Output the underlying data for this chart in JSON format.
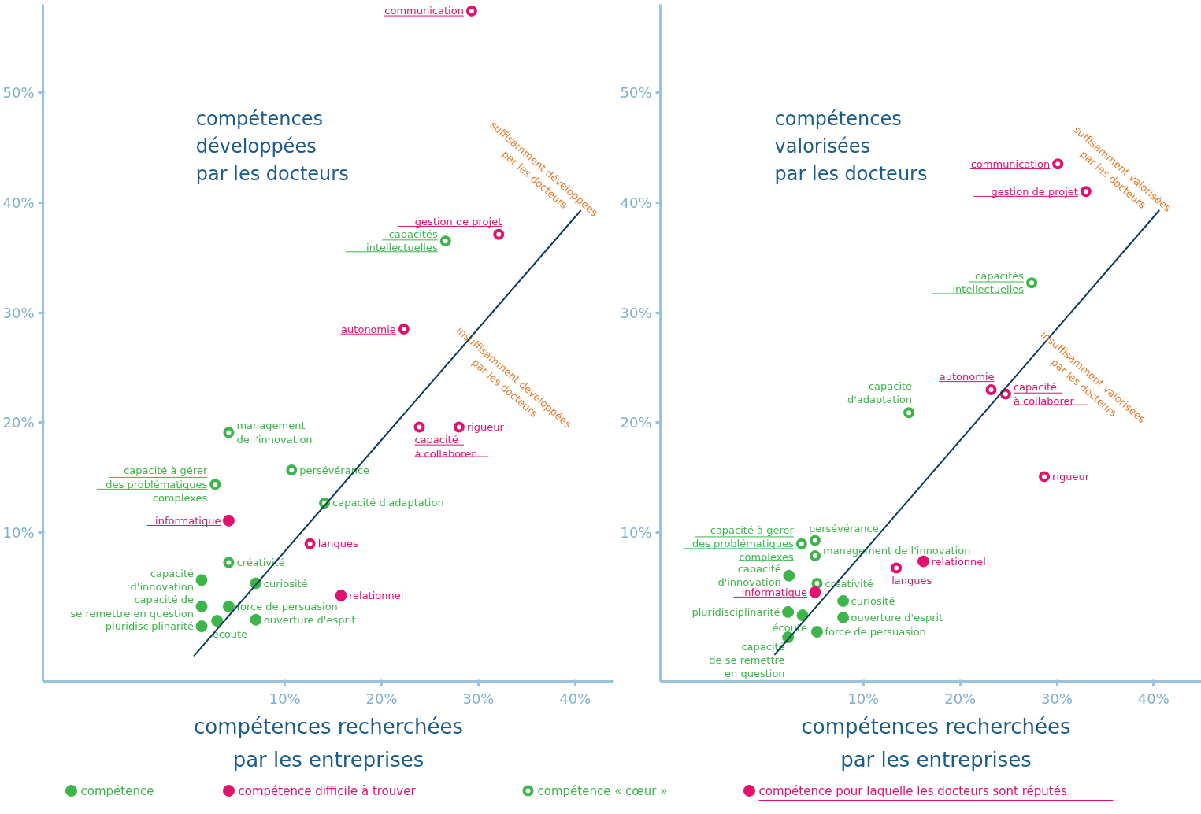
{
  "chart_data": [
    {
      "type": "scatter",
      "marker": "circle",
      "legend": "bottom",
      "ylabel": "compétences\ndéveloppées\npar les docteurs",
      "xlabel": "compétences recherchées\npar les entreprises",
      "xlim": [
        -15,
        44
      ],
      "ylim": [
        -3.5,
        58
      ],
      "xticks": [
        {
          "value": 10,
          "label": "10%"
        },
        {
          "value": 20,
          "label": "20%"
        },
        {
          "value": 30,
          "label": "30%"
        },
        {
          "value": 40,
          "label": "40%"
        }
      ],
      "yticks": [
        {
          "value": 10,
          "label": "10%"
        },
        {
          "value": 20,
          "label": "20%"
        },
        {
          "value": 30,
          "label": "30%"
        },
        {
          "value": 40,
          "label": "40%"
        },
        {
          "value": 50,
          "label": "50%"
        }
      ],
      "series": [
        {
          "name": "compétence",
          "color": "#3db54a",
          "x": [
            1.4,
            1.4,
            1.4,
            3.0,
            7.0,
            4.2,
            7.0
          ],
          "values": [
            5.7,
            3.3,
            1.5,
            2.0,
            5.4,
            3.3,
            2.1
          ],
          "value_labels": [
            "capacité\nd'innovation",
            "capacité de\nse remettre en question",
            "pluridisciplinarité",
            "écoute",
            "curiosité",
            "force de persuasion",
            "ouverture d'esprit"
          ]
        },
        {
          "name": "compétence difficile à trouver",
          "color": "#e3106e",
          "x": [
            15.8
          ],
          "values": [
            4.3
          ],
          "value_labels": [
            "relationnel"
          ]
        },
        {
          "name": "compétence « cœur »",
          "color": "#3db54a",
          "x": [
            4.2,
            10.7,
            14.1,
            4.2
          ],
          "values": [
            19.1,
            15.7,
            12.7,
            7.3
          ],
          "value_labels": [
            "management\nde l'innovation",
            "persévérance",
            "capacité d'adaptation",
            "créativité"
          ]
        },
        {
          "name": "compétence pour laquelle les docteurs sont réputés",
          "color": "#e3106e",
          "x": [
            4.2
          ],
          "values": [
            11.1
          ],
          "value_labels": [
            "informatique"
          ]
        },
        {
          "color": "#3db54a",
          "x": [
            26.6,
            2.8
          ],
          "values": [
            36.5,
            14.4
          ],
          "value_labels": [
            "capacités\nintellectuelles",
            "capacité à gérer\ndes problématiques\ncomplexes"
          ]
        },
        {
          "color": "#e3106e",
          "x": [
            28.0,
            12.6
          ],
          "values": [
            19.6,
            9.0
          ],
          "value_labels": [
            "rigueur",
            "langues"
          ]
        },
        {
          "color": "#e3106e",
          "x": [
            29.3,
            32.1,
            22.3,
            23.9
          ],
          "values": [
            57.4,
            37.1,
            28.5,
            19.6
          ],
          "value_labels": [
            "communication",
            "gestion de projet",
            "autonomie",
            "capacité\nà collaborer"
          ]
        },
        {
          "type": "line",
          "marker": "none",
          "color": "#0d3b5a",
          "x": [
            0.6,
            40.6
          ],
          "values": [
            -1.2,
            39.3
          ]
        }
      ],
      "annotations": [
        "suffisamment développées\npar les docteurs",
        "insuffisamment développées\npar les docteurs"
      ]
    },
    {
      "type": "scatter",
      "marker": "circle",
      "ylabel": "compétences\nvalorisées\npar les docteurs",
      "xlabel": "compétences recherchées\npar les entreprises",
      "xlim": [
        -11,
        46
      ],
      "ylim": [
        -3.5,
        58
      ],
      "xticks": [
        {
          "value": 10,
          "label": "10%"
        },
        {
          "value": 20,
          "label": "20%"
        },
        {
          "value": 30,
          "label": "30%"
        },
        {
          "value": 40,
          "label": "40%"
        }
      ],
      "yticks": [
        {
          "value": 10,
          "label": "10%"
        },
        {
          "value": 20,
          "label": "20%"
        },
        {
          "value": 30,
          "label": "30%"
        },
        {
          "value": 40,
          "label": "40%"
        },
        {
          "value": 50,
          "label": "50%"
        }
      ],
      "series": [
        {
          "color": "#3db54a",
          "x": [
            2.3,
            2.2,
            3.7,
            7.9,
            7.9,
            5.2,
            2.2
          ],
          "values": [
            6.1,
            2.8,
            2.5,
            3.8,
            2.3,
            1.0,
            0.5
          ],
          "value_labels": [
            "capacité\nd'innovation",
            "pluridisciplinarité",
            "écoute",
            "curiosité",
            "ouverture d'esprit",
            "force de persuasion",
            "capacité\nde se remettre\nen question"
          ]
        },
        {
          "color": "#e3106e",
          "x": [
            16.2
          ],
          "values": [
            7.4
          ],
          "value_labels": [
            "relationnel"
          ]
        },
        {
          "color": "#3db54a",
          "x": [
            5.0,
            5.0,
            5.2,
            14.7
          ],
          "values": [
            9.3,
            7.9,
            5.4,
            20.9
          ],
          "value_labels": [
            "persévérance",
            "management de l'innovation",
            "créativité",
            "capacité\nd'adaptation"
          ]
        },
        {
          "color": "#e3106e",
          "x": [
            5.0
          ],
          "values": [
            4.6
          ],
          "value_labels": [
            "informatique"
          ]
        },
        {
          "color": "#3db54a",
          "x": [
            27.4,
            3.6
          ],
          "values": [
            32.7,
            9.0
          ],
          "value_labels": [
            "capacités\nintellectuelles",
            "capacité à gérer\ndes problématiques\ncomplexes"
          ]
        },
        {
          "color": "#e3106e",
          "x": [
            28.7,
            13.4
          ],
          "values": [
            15.1,
            6.8
          ],
          "value_labels": [
            "rigueur",
            "langues"
          ]
        },
        {
          "color": "#e3106e",
          "x": [
            30.1,
            33.0,
            23.2,
            24.7
          ],
          "values": [
            43.5,
            41.0,
            23.0,
            22.6
          ],
          "value_labels": [
            "communication",
            "gestion de projet",
            "autonomie",
            "capacité\nà collaborer"
          ]
        },
        {
          "type": "line",
          "marker": "none",
          "color": "#0d3b5a",
          "x": [
            0.8,
            40.6
          ],
          "values": [
            -1.1,
            39.3
          ]
        }
      ],
      "annotations": [
        "suffisamment valorisées\npar les docteurs",
        "insuffisamment valorisées\npar les docteurs"
      ]
    }
  ]
}
